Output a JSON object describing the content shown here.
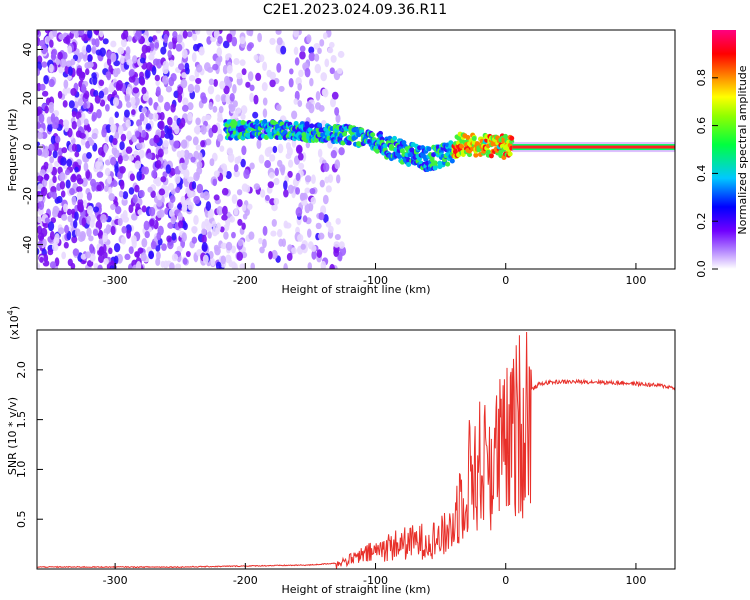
{
  "title": "C2E1.2023.024.09.36.R11",
  "chart_data": [
    {
      "type": "heatmap",
      "xlabel": "Height of straight line (km)",
      "ylabel": "Frequency (Hz)",
      "xlim": [
        -360,
        130
      ],
      "ylim": [
        -50,
        48
      ],
      "x_ticks": [
        -300,
        -200,
        -100,
        0,
        100
      ],
      "y_ticks": [
        -40,
        -20,
        0,
        20,
        40
      ],
      "colorbar": {
        "label": "Normalized spectral amplitude",
        "range": [
          0.0,
          1.0
        ],
        "ticks": [
          0.0,
          0.2,
          0.4,
          0.6,
          0.8
        ],
        "colors": [
          "#ffffff",
          "#8000ff",
          "#0000ff",
          "#00c8ff",
          "#00ff00",
          "#ffff00",
          "#ff8000",
          "#ff0000",
          "#ff0080"
        ]
      },
      "ridge": [
        {
          "x": -215,
          "y": 7
        },
        {
          "x": -180,
          "y": 7
        },
        {
          "x": -150,
          "y": 6
        },
        {
          "x": -120,
          "y": 5
        },
        {
          "x": -100,
          "y": 2
        },
        {
          "x": -80,
          "y": -2
        },
        {
          "x": -60,
          "y": -5
        },
        {
          "x": -45,
          "y": -3
        },
        {
          "x": -35,
          "y": 1
        },
        {
          "x": -20,
          "y": 1
        },
        {
          "x": 0,
          "y": 0
        },
        {
          "x": 130,
          "y": 0
        }
      ]
    },
    {
      "type": "line",
      "xlabel": "Height of straight line (km)",
      "ylabel": "SNR (10 * v/v)",
      "y_multiplier": "(x10",
      "y_multiplier_exp": "4",
      "y_multiplier_close": ")",
      "xlim": [
        -360,
        130
      ],
      "ylim": [
        0,
        2.4
      ],
      "x_ticks": [
        -300,
        -200,
        -100,
        0,
        100
      ],
      "y_ticks": [
        0.5,
        1.0,
        1.5,
        2.0
      ],
      "y_tick_labels": [
        "0.5",
        "1.0",
        "1.5",
        "2.0"
      ],
      "series": [
        {
          "color": "#e8302a",
          "x": [
            -360,
            -300,
            -250,
            -200,
            -150,
            -130,
            -120,
            -110,
            -100,
            -90,
            -80,
            -70,
            -60,
            -50,
            -45,
            -40,
            -35,
            -30,
            -25,
            -20,
            -15,
            -10,
            -5,
            0,
            5,
            10,
            15,
            20,
            25,
            30,
            40,
            50,
            60,
            70,
            80,
            90,
            100,
            110,
            120,
            130
          ],
          "y": [
            0.02,
            0.02,
            0.02,
            0.03,
            0.04,
            0.06,
            0.1,
            0.15,
            0.2,
            0.25,
            0.28,
            0.3,
            0.32,
            0.35,
            0.4,
            0.5,
            0.8,
            1.0,
            1.1,
            1.15,
            1.2,
            1.2,
            1.3,
            1.35,
            1.45,
            1.6,
            1.72,
            1.8,
            1.85,
            1.87,
            1.88,
            1.88,
            1.88,
            1.88,
            1.87,
            1.87,
            1.86,
            1.85,
            1.84,
            1.82
          ]
        }
      ]
    }
  ]
}
